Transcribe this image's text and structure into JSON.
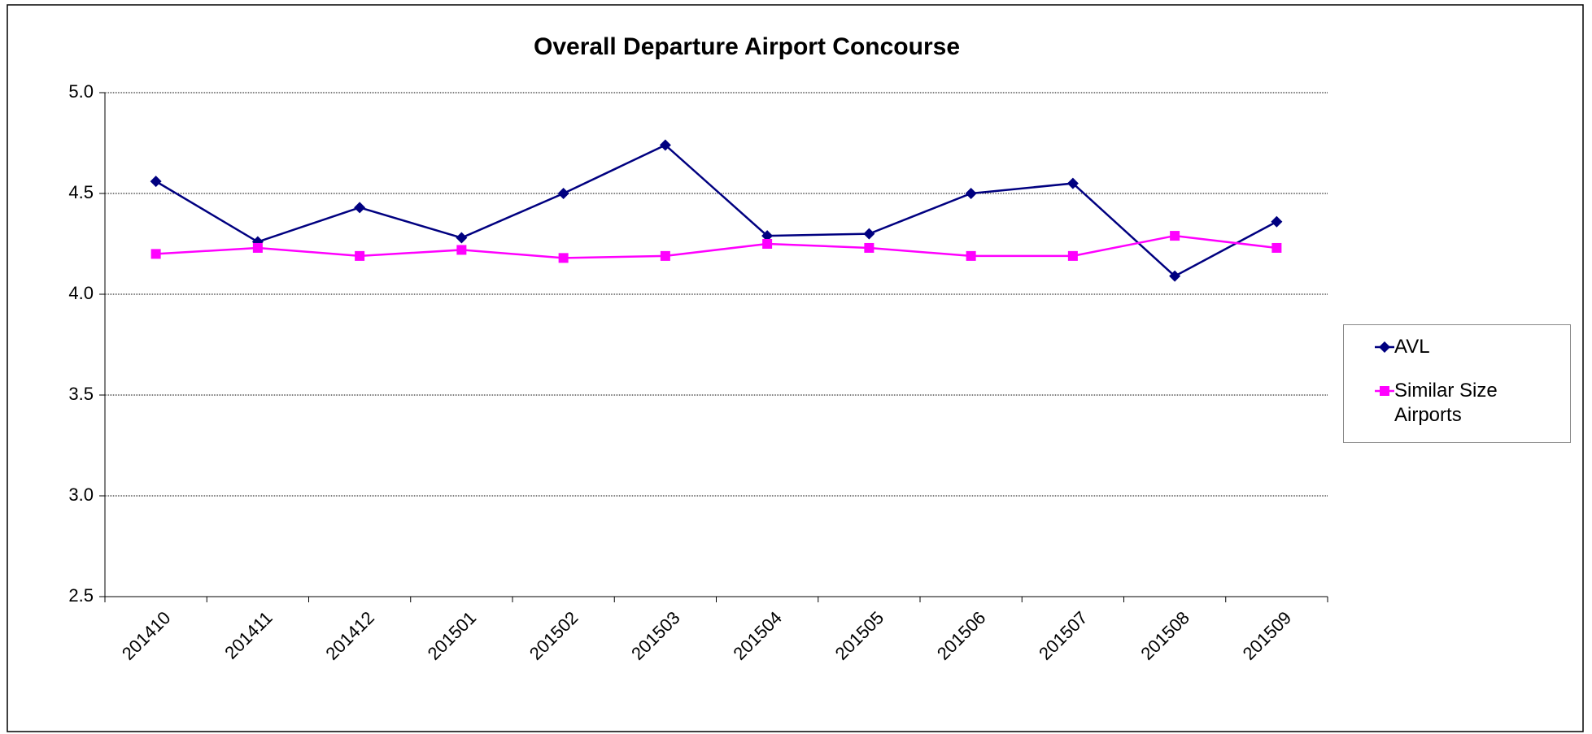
{
  "chart_data": {
    "type": "line",
    "title": "Overall Departure Airport Concourse",
    "categories": [
      "201410",
      "201411",
      "201412",
      "201501",
      "201502",
      "201503",
      "201504",
      "201505",
      "201506",
      "201507",
      "201508",
      "201509"
    ],
    "series": [
      {
        "name": "AVL",
        "color": "#000080",
        "marker": "diamond",
        "values": [
          4.56,
          4.26,
          4.43,
          4.28,
          4.5,
          4.74,
          4.29,
          4.3,
          4.5,
          4.55,
          4.09,
          4.36
        ]
      },
      {
        "name": "Similar Size Airports",
        "color": "#ff00ff",
        "marker": "square",
        "values": [
          4.2,
          4.23,
          4.19,
          4.22,
          4.18,
          4.19,
          4.25,
          4.23,
          4.19,
          4.19,
          4.29,
          4.23
        ]
      }
    ],
    "ylim": [
      2.5,
      5.0
    ],
    "yticks": [
      {
        "value": 2.5,
        "label": "2.5"
      },
      {
        "value": 3,
        "label": "3.0"
      },
      {
        "value": 3.5,
        "label": "3.5"
      },
      {
        "value": 4,
        "label": "4.0"
      },
      {
        "value": 4.5,
        "label": "4.5"
      },
      {
        "value": 5,
        "label": "5.0"
      }
    ],
    "grid": true,
    "legend": "right"
  }
}
